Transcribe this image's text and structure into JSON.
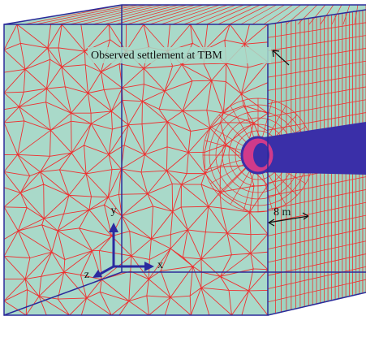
{
  "annotation": "Observed settlement at TBM",
  "distance_label": "8 m",
  "axes": {
    "x": "x",
    "y": "y",
    "z": "z"
  }
}
